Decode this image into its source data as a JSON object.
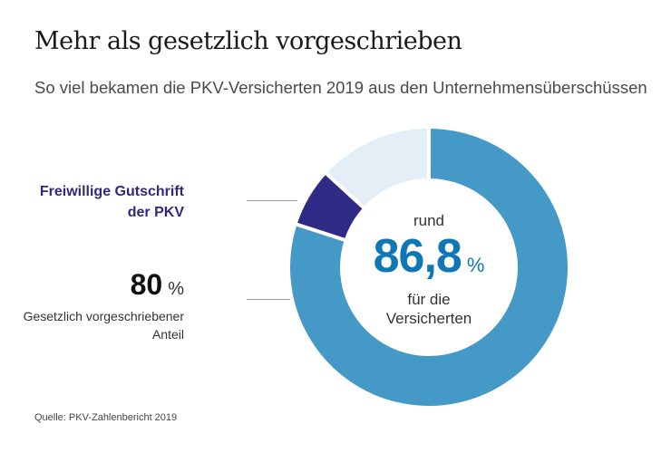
{
  "header": {
    "title": "Mehr als gesetzlich vorgeschrieben",
    "subtitle": "So viel bekamen die PKV-Versicherten 2019 aus den Unternehmensüberschüssen"
  },
  "labels": {
    "voluntary": {
      "line1": "Freiwillige Gutschrift",
      "line2": "der PKV"
    },
    "legal": {
      "value": "80",
      "unit": "%",
      "line1": "Gesetzlich vorgeschriebener",
      "line2": "Anteil"
    }
  },
  "center": {
    "prefix": "rund",
    "value": "86,8",
    "unit": "%",
    "line1": "für die",
    "line2": "Versicherten"
  },
  "source": "Quelle: PKV-Zahlenbericht 2019",
  "chart_data": {
    "type": "pie",
    "variant": "donut",
    "title": "Mehr als gesetzlich vorgeschrieben",
    "subtitle": "So viel bekamen die PKV-Versicherten 2019 aus den Unternehmensüberschüssen",
    "unit": "%",
    "start": "top",
    "direction": "clockwise",
    "slices": [
      {
        "name": "Gesetzlich vorgeschriebener Anteil",
        "value": 80.0,
        "color": "#4499c6"
      },
      {
        "name": "Freiwillige Gutschrift der PKV",
        "value": 6.8,
        "color": "#2f2a86"
      },
      {
        "name": "Rest",
        "value": 13.2,
        "color": "#e3eef6"
      }
    ],
    "center_label": "rund 86,8 % für die Versicherten",
    "annotations": [
      "Freiwillige Gutschrift der PKV",
      "80 % Gesetzlich vorgeschriebener Anteil"
    ]
  }
}
